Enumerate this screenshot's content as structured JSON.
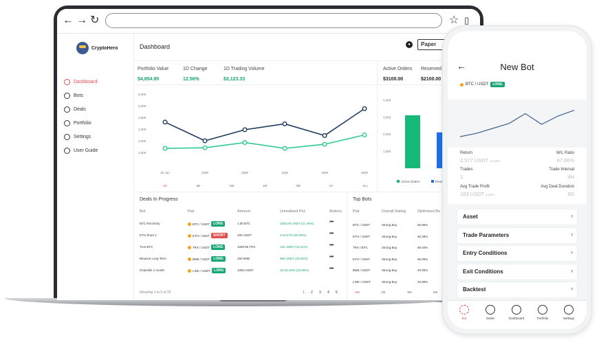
{
  "app": {
    "brand": "CryptoHero"
  },
  "sidebar": {
    "items": [
      {
        "label": "Dashboard",
        "icon": "dashboard-icon",
        "active": true
      },
      {
        "label": "Bots",
        "icon": "robot-icon"
      },
      {
        "label": "Deals",
        "icon": "swap-icon"
      },
      {
        "label": "Portfolio",
        "icon": "pie-chart-icon"
      },
      {
        "label": "Settings",
        "icon": "gear-icon"
      },
      {
        "label": "User Guide",
        "icon": "info-icon"
      }
    ]
  },
  "header": {
    "title": "Dashboard",
    "mode": "Paper"
  },
  "stats": [
    {
      "label": "Portfolio Value",
      "value": "$4,854.89"
    },
    {
      "label": "1D Change",
      "value": "12.56%"
    },
    {
      "label": "1D Trading Volume",
      "value": "$3,123.33"
    },
    {
      "label": "Active Orders",
      "value": "$3100.00"
    },
    {
      "label": "Reserved",
      "value": "$2100.00"
    }
  ],
  "line_chart": {
    "chart_data": {
      "type": "line",
      "x": [
        "30 Jun",
        "3400",
        "2800",
        "1200",
        "1800",
        "2000"
      ],
      "series": [
        {
          "color": "#1f3a5f",
          "values": [
            3600,
            2000,
            2950,
            3450,
            2450,
            4750
          ]
        },
        {
          "color": "#2ecc8f",
          "values": [
            1350,
            1400,
            1850,
            1350,
            1700,
            2500
          ]
        }
      ],
      "yticks": [
        "6,000",
        "5,000",
        "4,000",
        "3,000",
        "2,000",
        "1,000"
      ],
      "ylim": [
        0,
        6000
      ]
    },
    "ranges": [
      "1D",
      "3D",
      "1W",
      "1M",
      "3M",
      "1Y",
      "ALL"
    ]
  },
  "bar_chart": {
    "chart_data": {
      "type": "bar",
      "categories": [
        "Active Orders",
        "Reserved"
      ],
      "values": [
        3100,
        2100
      ],
      "colors": [
        "#17b978",
        "#1e6ff0"
      ],
      "yticks": [
        "4,000",
        "3,000",
        "2,000",
        "1,000"
      ],
      "ylim": [
        0,
        4500
      ]
    },
    "legend": [
      "Active Orders",
      "Reserved"
    ]
  },
  "deals": {
    "title": "Deals In Progress",
    "columns": [
      "Bot",
      "Pair",
      "Amount",
      "Unrealised PnL",
      "Actions"
    ],
    "rows": [
      {
        "bot": "BTC RSI Entry",
        "pair": "BTC / USDT",
        "side": "LONG",
        "amount": "1.00 BTC",
        "pnl": "1000.00 USDT (21.36%)"
      },
      {
        "bot": "ETH Short 1",
        "pair": "ETH / USDT",
        "side": "SHORT",
        "amount": "200 USDT",
        "pnl": "0.10 ETH (60.00%)"
      },
      {
        "bot": "Tron BTC",
        "pair": "TRX / USDT",
        "side": "LONG",
        "amount": "1090.56 TRX",
        "pnl": "120 USDT (41.21%)"
      },
      {
        "bot": "Binance Long Term",
        "pair": "BNB / USDT",
        "side": "LONG",
        "amount": "150 BNB",
        "pnl": "850 USDT (20.59%)"
      },
      {
        "bot": "Chainlink 1 month",
        "pair": "LINK / USDT",
        "side": "LONG",
        "amount": "1050 USDT",
        "pnl": "20.33 LINK (20.59%)"
      }
    ],
    "footer": "Showing 1 to 5 of 20",
    "pages": [
      "1",
      "2",
      "3",
      "4",
      "5"
    ]
  },
  "top_bots": {
    "title": "Top Bots",
    "columns": [
      "Pair",
      "Overall Rating",
      "Optimized Bo"
    ],
    "rows": [
      {
        "pair": "BTC / USDT",
        "rating": "Strong Buy",
        "score": "56.95%"
      },
      {
        "pair": "ETH / USDT",
        "rating": "Strong Buy",
        "score": "60.38%"
      },
      {
        "pair": "TRX / BTC",
        "rating": "Strong Buy",
        "score": "58.40%"
      },
      {
        "pair": "ETH / USDT",
        "rating": "Strong Buy",
        "score": "55.05%"
      },
      {
        "pair": "BNB / USDT",
        "rating": "Strong Buy",
        "score": "40.05%"
      },
      {
        "pair": "LINK / USDT",
        "rating": "Strong Buy",
        "score": "20.95%"
      }
    ],
    "ranges": [
      "1W",
      "1M",
      "3M",
      "6M"
    ]
  },
  "phone": {
    "title": "New Bot",
    "pair": "BTC / USDT",
    "side": "LONG",
    "chart_data": {
      "type": "line",
      "values": [
        30,
        34,
        40,
        46,
        58,
        45,
        55,
        62
      ],
      "color": "#3f5f8a"
    },
    "stats": {
      "return_label": "Return",
      "return_value": "2,577 USDT",
      "return_pct": "23.18%",
      "wl_label": "W/L Ratio",
      "wl_value": "67.66%",
      "trades_label": "Trades",
      "trades_value": "1",
      "interval_label": "Trade Interval",
      "interval_value": "4H",
      "avg_profit_label": "Avg Trade Profit",
      "avg_profit_value": "183 USDT",
      "avg_profit_pct": "3.25%",
      "avg_duration_label": "Avg Deal Duration",
      "avg_duration_value": "8D"
    },
    "sections": [
      "Asset",
      "Trade Parameters",
      "Entry Conditions",
      "Exit Conditions",
      "Backtest"
    ],
    "tabs": [
      {
        "label": "Bot",
        "icon": "robot-icon",
        "active": true
      },
      {
        "label": "Deals",
        "icon": "swap-icon"
      },
      {
        "label": "Dashboard",
        "icon": "gauge-icon"
      },
      {
        "label": "Portfolio",
        "icon": "pie-chart-icon"
      },
      {
        "label": "Settings",
        "icon": "gear-icon"
      }
    ]
  }
}
